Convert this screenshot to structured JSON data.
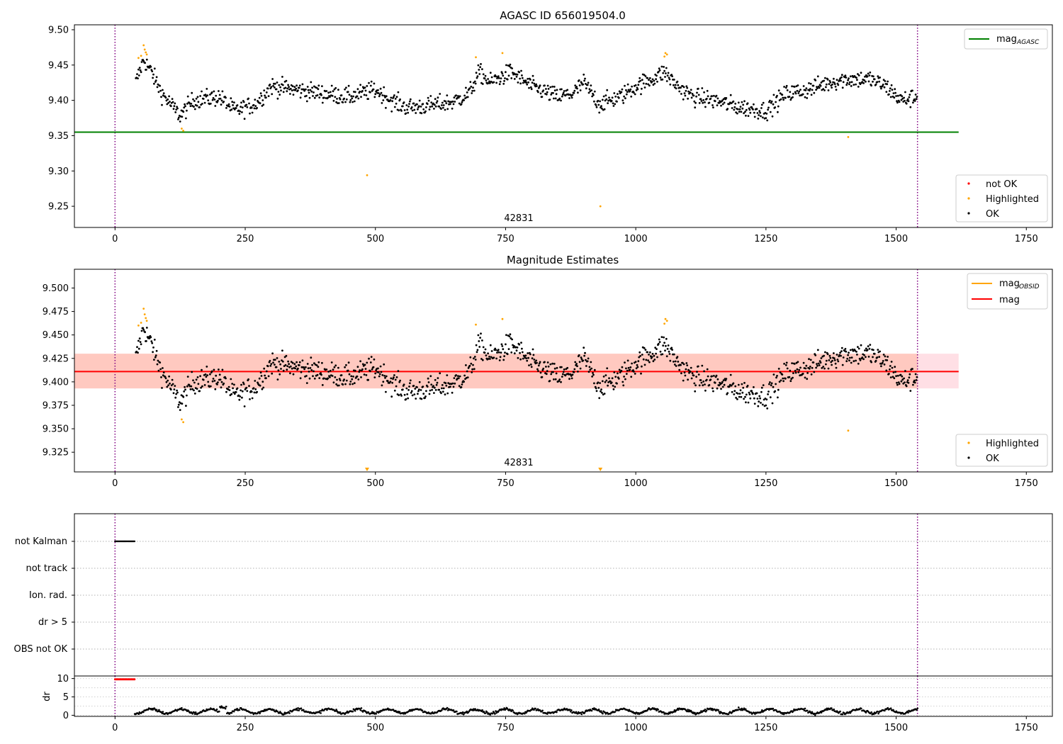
{
  "figure": {
    "title_top": "AGASC ID 656019504.0",
    "title_mid": "Magnitude Estimates",
    "obsid_label": "42831",
    "colors": {
      "ok": "#000000",
      "highlighted": "#ffa500",
      "not_ok": "#ff0000",
      "agasc_line": "#008000",
      "mag_line": "#ff0000",
      "obsid_line": "#ffa500",
      "band_outer": "#ffc0cb",
      "band_inner": "#ffa07a",
      "vline": "#800080"
    }
  },
  "chart_data": [
    {
      "type": "scatter",
      "panel": "agasc",
      "title": "AGASC ID 656019504.0",
      "xlim": [
        -78,
        1800
      ],
      "ylim": [
        9.22,
        9.507
      ],
      "x_ticks": [
        0,
        250,
        500,
        750,
        1000,
        1250,
        1500,
        1750
      ],
      "y_ticks": [
        9.25,
        9.3,
        9.35,
        9.4,
        9.45,
        9.5
      ],
      "vlines_x": [
        0,
        1541
      ],
      "hline": {
        "name": "mag_AGASC",
        "y": 9.355,
        "x_range": [
          -78,
          1620
        ]
      },
      "annotation": {
        "text": "42831",
        "x": 770,
        "y": 9.23
      },
      "legend_lines": [
        {
          "label": "mag",
          "subscript": "AGASC",
          "color": "#008000"
        }
      ],
      "legend_points": [
        {
          "label": "not OK",
          "color": "#ff0000"
        },
        {
          "label": "Highlighted",
          "color": "#ffa500"
        },
        {
          "label": "OK",
          "color": "#000000"
        }
      ],
      "trend": [
        [
          40,
          9.425
        ],
        [
          55,
          9.458
        ],
        [
          70,
          9.44
        ],
        [
          90,
          9.41
        ],
        [
          125,
          9.378
        ],
        [
          150,
          9.4
        ],
        [
          200,
          9.405
        ],
        [
          230,
          9.385
        ],
        [
          270,
          9.395
        ],
        [
          300,
          9.42
        ],
        [
          350,
          9.415
        ],
        [
          400,
          9.41
        ],
        [
          450,
          9.405
        ],
        [
          500,
          9.415
        ],
        [
          530,
          9.4
        ],
        [
          560,
          9.39
        ],
        [
          600,
          9.392
        ],
        [
          650,
          9.398
        ],
        [
          680,
          9.41
        ],
        [
          700,
          9.44
        ],
        [
          720,
          9.425
        ],
        [
          760,
          9.44
        ],
        [
          800,
          9.42
        ],
        [
          850,
          9.405
        ],
        [
          880,
          9.41
        ],
        [
          900,
          9.425
        ],
        [
          930,
          9.395
        ],
        [
          970,
          9.405
        ],
        [
          1000,
          9.42
        ],
        [
          1030,
          9.43
        ],
        [
          1055,
          9.44
        ],
        [
          1080,
          9.42
        ],
        [
          1110,
          9.405
        ],
        [
          1150,
          9.4
        ],
        [
          1200,
          9.39
        ],
        [
          1250,
          9.385
        ],
        [
          1290,
          9.41
        ],
        [
          1330,
          9.415
        ],
        [
          1370,
          9.425
        ],
        [
          1400,
          9.43
        ],
        [
          1450,
          9.43
        ],
        [
          1480,
          9.42
        ],
        [
          1510,
          9.4
        ],
        [
          1540,
          9.405
        ]
      ],
      "highlighted": [
        [
          45,
          9.46
        ],
        [
          50,
          9.463
        ],
        [
          55,
          9.478
        ],
        [
          57,
          9.472
        ],
        [
          59,
          9.468
        ],
        [
          61,
          9.465
        ],
        [
          128,
          9.36
        ],
        [
          131,
          9.357
        ],
        [
          484,
          9.294
        ],
        [
          693,
          9.461
        ],
        [
          744,
          9.467
        ],
        [
          932,
          9.25
        ],
        [
          1055,
          9.462
        ],
        [
          1057,
          9.467
        ],
        [
          1060,
          9.465
        ],
        [
          1408,
          9.348
        ]
      ]
    },
    {
      "type": "scatter",
      "panel": "estimates",
      "title": "Magnitude Estimates",
      "xlim": [
        -78,
        1800
      ],
      "ylim": [
        9.304,
        9.52
      ],
      "x_ticks": [
        0,
        250,
        500,
        750,
        1000,
        1250,
        1500,
        1750
      ],
      "y_ticks": [
        9.325,
        9.35,
        9.375,
        9.4,
        9.425,
        9.45,
        9.475,
        9.5
      ],
      "vlines_x": [
        0,
        1541
      ],
      "hline": {
        "name": "mag",
        "y": 9.411,
        "x_range": [
          -78,
          1620
        ]
      },
      "band_outer": [
        9.393,
        9.43
      ],
      "band_inner": [
        9.393,
        9.43
      ],
      "band_inner_x": [
        -78,
        1541
      ],
      "annotation": {
        "text": "42831",
        "x": 770,
        "y": 9.31
      },
      "legend_lines": [
        {
          "label": "mag",
          "subscript": "OBSID",
          "color": "#ffa500"
        },
        {
          "label": "mag",
          "subscript": "",
          "color": "#ff0000"
        }
      ],
      "legend_points": [
        {
          "label": "Highlighted",
          "color": "#ffa500"
        },
        {
          "label": "OK",
          "color": "#000000"
        }
      ],
      "highlighted": [
        [
          45,
          9.46
        ],
        [
          50,
          9.463
        ],
        [
          55,
          9.478
        ],
        [
          57,
          9.472
        ],
        [
          59,
          9.468
        ],
        [
          61,
          9.465
        ],
        [
          128,
          9.36
        ],
        [
          131,
          9.357
        ],
        [
          693,
          9.461
        ],
        [
          744,
          9.467
        ],
        [
          1055,
          9.462
        ],
        [
          1057,
          9.467
        ],
        [
          1060,
          9.465
        ],
        [
          1408,
          9.348
        ]
      ],
      "offscale_markers": [
        484,
        932
      ]
    },
    {
      "type": "scatter",
      "panel": "flags",
      "categories": [
        "not Kalman",
        "not track",
        "Ion. rad.",
        "dr > 5",
        "OBS not OK"
      ],
      "xlim": [
        -78,
        1800
      ],
      "vlines_x": [
        0,
        1541
      ],
      "series": [
        {
          "name": "not Kalman",
          "x_range": [
            0,
            38
          ]
        }
      ]
    },
    {
      "type": "scatter",
      "panel": "dr",
      "ylabel": "dr",
      "xlim": [
        -78,
        1800
      ],
      "ylim": [
        -0.3,
        10.7
      ],
      "x_ticks": [
        0,
        250,
        500,
        750,
        1000,
        1250,
        1500,
        1750
      ],
      "y_ticks": [
        0,
        5,
        10
      ],
      "vlines_x": [
        0,
        1541
      ],
      "series": [
        {
          "name": "dr outliers",
          "x_range": [
            0,
            38
          ],
          "y": 9.8
        },
        {
          "name": "dr",
          "x_range": [
            38,
            1541
          ],
          "y_mean": 1.1
        }
      ]
    }
  ]
}
